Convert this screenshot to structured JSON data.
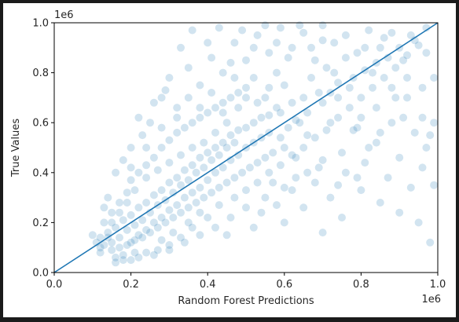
{
  "chart_data": {
    "type": "scatter",
    "title": "",
    "xlabel": "Random Forest Predictions",
    "ylabel": "True Values",
    "x_offset_text": "1e6",
    "y_offset_text": "1e6",
    "xlim": [
      0.0,
      1.0
    ],
    "ylim": [
      0.0,
      1.0
    ],
    "xticks": [
      "0.0",
      "0.2",
      "0.4",
      "0.6",
      "0.8",
      "1.0"
    ],
    "yticks": [
      "0.0",
      "0.2",
      "0.4",
      "0.6",
      "0.8",
      "1.0"
    ],
    "grid": false,
    "point_color": "#1f77b4",
    "point_alpha": 0.2,
    "line_color": "#1f77b4",
    "reference_line": {
      "x": [
        0.0,
        1.0
      ],
      "y": [
        0.0,
        1.0
      ]
    },
    "points": [
      [
        0.14,
        0.16
      ],
      [
        0.15,
        0.12
      ],
      [
        0.16,
        0.18
      ],
      [
        0.17,
        0.14
      ],
      [
        0.18,
        0.21
      ],
      [
        0.19,
        0.17
      ],
      [
        0.2,
        0.23
      ],
      [
        0.21,
        0.19
      ],
      [
        0.22,
        0.26
      ],
      [
        0.23,
        0.21
      ],
      [
        0.24,
        0.28
      ],
      [
        0.25,
        0.24
      ],
      [
        0.26,
        0.31
      ],
      [
        0.27,
        0.27
      ],
      [
        0.28,
        0.33
      ],
      [
        0.29,
        0.29
      ],
      [
        0.3,
        0.36
      ],
      [
        0.31,
        0.32
      ],
      [
        0.32,
        0.38
      ],
      [
        0.33,
        0.35
      ],
      [
        0.34,
        0.41
      ],
      [
        0.35,
        0.37
      ],
      [
        0.36,
        0.43
      ],
      [
        0.37,
        0.4
      ],
      [
        0.38,
        0.46
      ],
      [
        0.39,
        0.42
      ],
      [
        0.4,
        0.48
      ],
      [
        0.41,
        0.45
      ],
      [
        0.42,
        0.5
      ],
      [
        0.43,
        0.47
      ],
      [
        0.44,
        0.52
      ],
      [
        0.45,
        0.5
      ],
      [
        0.46,
        0.55
      ],
      [
        0.47,
        0.52
      ],
      [
        0.48,
        0.57
      ],
      [
        0.5,
        0.58
      ],
      [
        0.52,
        0.6
      ],
      [
        0.54,
        0.62
      ],
      [
        0.56,
        0.63
      ],
      [
        0.58,
        0.66
      ],
      [
        0.12,
        0.1
      ],
      [
        0.13,
        0.2
      ],
      [
        0.15,
        0.24
      ],
      [
        0.17,
        0.28
      ],
      [
        0.19,
        0.32
      ],
      [
        0.2,
        0.12
      ],
      [
        0.22,
        0.15
      ],
      [
        0.24,
        0.17
      ],
      [
        0.26,
        0.2
      ],
      [
        0.28,
        0.22
      ],
      [
        0.3,
        0.25
      ],
      [
        0.32,
        0.27
      ],
      [
        0.34,
        0.3
      ],
      [
        0.36,
        0.32
      ],
      [
        0.38,
        0.34
      ],
      [
        0.4,
        0.37
      ],
      [
        0.42,
        0.4
      ],
      [
        0.44,
        0.42
      ],
      [
        0.46,
        0.45
      ],
      [
        0.48,
        0.47
      ],
      [
        0.5,
        0.5
      ],
      [
        0.52,
        0.52
      ],
      [
        0.54,
        0.54
      ],
      [
        0.56,
        0.56
      ],
      [
        0.2,
        0.37
      ],
      [
        0.22,
        0.4
      ],
      [
        0.24,
        0.43
      ],
      [
        0.26,
        0.46
      ],
      [
        0.28,
        0.5
      ],
      [
        0.3,
        0.53
      ],
      [
        0.32,
        0.56
      ],
      [
        0.34,
        0.58
      ],
      [
        0.36,
        0.6
      ],
      [
        0.38,
        0.62
      ],
      [
        0.4,
        0.64
      ],
      [
        0.42,
        0.66
      ],
      [
        0.44,
        0.68
      ],
      [
        0.46,
        0.7
      ],
      [
        0.48,
        0.72
      ],
      [
        0.5,
        0.74
      ],
      [
        0.25,
        0.6
      ],
      [
        0.28,
        0.7
      ],
      [
        0.3,
        0.78
      ],
      [
        0.32,
        0.66
      ],
      [
        0.35,
        0.82
      ],
      [
        0.38,
        0.75
      ],
      [
        0.41,
        0.86
      ],
      [
        0.44,
        0.8
      ],
      [
        0.47,
        0.92
      ],
      [
        0.5,
        0.85
      ],
      [
        0.53,
        0.95
      ],
      [
        0.56,
        0.88
      ],
      [
        0.59,
        0.98
      ],
      [
        0.62,
        0.9
      ],
      [
        0.65,
        0.96
      ],
      [
        0.68,
        0.85
      ],
      [
        0.7,
        0.93
      ],
      [
        0.73,
        0.8
      ],
      [
        0.76,
        0.95
      ],
      [
        0.79,
        0.88
      ],
      [
        0.82,
        0.97
      ],
      [
        0.85,
        0.9
      ],
      [
        0.88,
        0.96
      ],
      [
        0.91,
        0.85
      ],
      [
        0.94,
        0.93
      ],
      [
        0.97,
        0.88
      ],
      [
        0.6,
        0.5
      ],
      [
        0.63,
        0.46
      ],
      [
        0.66,
        0.55
      ],
      [
        0.69,
        0.42
      ],
      [
        0.72,
        0.6
      ],
      [
        0.75,
        0.48
      ],
      [
        0.78,
        0.57
      ],
      [
        0.81,
        0.44
      ],
      [
        0.84,
        0.52
      ],
      [
        0.87,
        0.38
      ],
      [
        0.9,
        0.46
      ],
      [
        0.93,
        0.34
      ],
      [
        0.96,
        0.42
      ],
      [
        0.99,
        0.35
      ],
      [
        0.55,
        0.3
      ],
      [
        0.58,
        0.27
      ],
      [
        0.62,
        0.33
      ],
      [
        0.65,
        0.26
      ],
      [
        0.68,
        0.36
      ],
      [
        0.72,
        0.3
      ],
      [
        0.76,
        0.4
      ],
      [
        0.8,
        0.33
      ],
      [
        0.85,
        0.28
      ],
      [
        0.9,
        0.24
      ],
      [
        0.95,
        0.2
      ],
      [
        0.98,
        0.12
      ],
      [
        0.75,
        0.22
      ],
      [
        0.7,
        0.16
      ],
      [
        0.6,
        0.2
      ],
      [
        0.52,
        0.18
      ],
      [
        0.45,
        0.15
      ],
      [
        0.4,
        0.22
      ],
      [
        0.36,
        0.18
      ],
      [
        0.33,
        0.14
      ],
      [
        0.3,
        0.11
      ],
      [
        0.27,
        0.09
      ],
      [
        0.24,
        0.08
      ],
      [
        0.21,
        0.08
      ],
      [
        0.18,
        0.07
      ],
      [
        0.16,
        0.06
      ],
      [
        0.28,
        0.13
      ],
      [
        0.31,
        0.16
      ],
      [
        0.35,
        0.2
      ],
      [
        0.38,
        0.24
      ],
      [
        0.43,
        0.27
      ],
      [
        0.47,
        0.3
      ],
      [
        0.5,
        0.33
      ],
      [
        0.53,
        0.36
      ],
      [
        0.56,
        0.4
      ],
      [
        0.59,
        0.43
      ],
      [
        0.62,
        0.47
      ],
      [
        0.65,
        0.5
      ],
      [
        0.68,
        0.54
      ],
      [
        0.71,
        0.57
      ],
      [
        0.74,
        0.62
      ],
      [
        0.77,
        0.66
      ],
      [
        0.8,
        0.7
      ],
      [
        0.83,
        0.74
      ],
      [
        0.86,
        0.78
      ],
      [
        0.89,
        0.82
      ],
      [
        0.92,
        0.87
      ],
      [
        0.95,
        0.91
      ],
      [
        0.2,
        0.5
      ],
      [
        0.23,
        0.55
      ],
      [
        0.18,
        0.45
      ],
      [
        0.16,
        0.4
      ],
      [
        0.14,
        0.3
      ],
      [
        0.13,
        0.26
      ],
      [
        0.22,
        0.62
      ],
      [
        0.26,
        0.68
      ],
      [
        0.29,
        0.73
      ],
      [
        0.33,
        0.9
      ],
      [
        0.36,
        0.97
      ],
      [
        0.4,
        0.92
      ],
      [
        0.43,
        0.98
      ],
      [
        0.46,
        0.84
      ],
      [
        0.49,
        0.97
      ],
      [
        0.52,
        0.9
      ],
      [
        0.55,
        0.99
      ],
      [
        0.58,
        0.92
      ],
      [
        0.61,
        0.86
      ],
      [
        0.64,
        0.99
      ],
      [
        0.67,
        0.9
      ],
      [
        0.7,
        0.99
      ],
      [
        0.73,
        0.92
      ],
      [
        0.76,
        0.86
      ],
      [
        0.8,
        0.62
      ],
      [
        0.84,
        0.66
      ],
      [
        0.88,
        0.6
      ],
      [
        0.92,
        0.7
      ],
      [
        0.96,
        0.62
      ],
      [
        0.98,
        0.55
      ],
      [
        0.65,
        0.7
      ],
      [
        0.6,
        0.75
      ],
      [
        0.58,
        0.8
      ],
      [
        0.55,
        0.7
      ],
      [
        0.52,
        0.78
      ],
      [
        0.48,
        0.66
      ],
      [
        0.45,
        0.6
      ],
      [
        0.42,
        0.56
      ],
      [
        0.39,
        0.52
      ],
      [
        0.36,
        0.5
      ],
      [
        0.33,
        0.47
      ],
      [
        0.3,
        0.44
      ],
      [
        0.27,
        0.41
      ],
      [
        0.24,
        0.38
      ],
      [
        0.21,
        0.33
      ],
      [
        0.19,
        0.28
      ],
      [
        0.17,
        0.24
      ],
      [
        0.15,
        0.2
      ],
      [
        0.14,
        0.14
      ],
      [
        0.13,
        0.11
      ],
      [
        0.12,
        0.14
      ],
      [
        0.11,
        0.12
      ],
      [
        0.1,
        0.15
      ],
      [
        0.12,
        0.08
      ],
      [
        0.15,
        0.09
      ],
      [
        0.17,
        0.1
      ],
      [
        0.19,
        0.11
      ],
      [
        0.21,
        0.13
      ],
      [
        0.23,
        0.14
      ],
      [
        0.25,
        0.16
      ],
      [
        0.27,
        0.18
      ],
      [
        0.29,
        0.2
      ],
      [
        0.31,
        0.22
      ],
      [
        0.33,
        0.24
      ],
      [
        0.35,
        0.26
      ],
      [
        0.37,
        0.28
      ],
      [
        0.39,
        0.3
      ],
      [
        0.41,
        0.32
      ],
      [
        0.43,
        0.34
      ],
      [
        0.45,
        0.36
      ],
      [
        0.47,
        0.38
      ],
      [
        0.49,
        0.4
      ],
      [
        0.51,
        0.42
      ],
      [
        0.53,
        0.44
      ],
      [
        0.55,
        0.46
      ],
      [
        0.57,
        0.48
      ],
      [
        0.59,
        0.54
      ],
      [
        0.61,
        0.58
      ],
      [
        0.63,
        0.61
      ],
      [
        0.66,
        0.64
      ],
      [
        0.7,
        0.68
      ],
      [
        0.72,
        0.72
      ],
      [
        0.74,
        0.76
      ],
      [
        0.78,
        0.78
      ],
      [
        0.81,
        0.81
      ],
      [
        0.84,
        0.84
      ],
      [
        0.87,
        0.86
      ],
      [
        0.9,
        0.9
      ],
      [
        0.93,
        0.95
      ],
      [
        0.97,
        0.98
      ],
      [
        0.99,
        0.78
      ],
      [
        0.96,
        0.74
      ],
      [
        0.92,
        0.78
      ],
      [
        0.88,
        0.74
      ],
      [
        0.85,
        0.56
      ],
      [
        0.82,
        0.5
      ],
      [
        0.79,
        0.38
      ],
      [
        0.74,
        0.35
      ],
      [
        0.7,
        0.45
      ],
      [
        0.66,
        0.4
      ],
      [
        0.63,
        0.38
      ],
      [
        0.6,
        0.34
      ],
      [
        0.57,
        0.36
      ],
      [
        0.54,
        0.24
      ],
      [
        0.5,
        0.26
      ],
      [
        0.46,
        0.22
      ],
      [
        0.42,
        0.18
      ],
      [
        0.38,
        0.15
      ],
      [
        0.34,
        0.12
      ],
      [
        0.3,
        0.09
      ],
      [
        0.26,
        0.07
      ],
      [
        0.22,
        0.06
      ],
      [
        0.2,
        0.05
      ],
      [
        0.18,
        0.05
      ],
      [
        0.16,
        0.04
      ],
      [
        0.2,
        0.42
      ],
      [
        0.24,
        0.5
      ],
      [
        0.28,
        0.58
      ],
      [
        0.32,
        0.62
      ],
      [
        0.35,
        0.7
      ],
      [
        0.38,
        0.66
      ],
      [
        0.41,
        0.72
      ],
      [
        0.44,
        0.64
      ],
      [
        0.47,
        0.78
      ],
      [
        0.5,
        0.7
      ],
      [
        0.53,
        0.68
      ],
      [
        0.56,
        0.74
      ],
      [
        0.59,
        0.64
      ],
      [
        0.62,
        0.68
      ],
      [
        0.64,
        0.6
      ],
      [
        0.67,
        0.78
      ],
      [
        0.69,
        0.72
      ],
      [
        0.71,
        0.82
      ],
      [
        0.74,
        0.7
      ],
      [
        0.77,
        0.74
      ],
      [
        0.79,
        0.58
      ],
      [
        0.81,
        0.9
      ],
      [
        0.83,
        0.8
      ],
      [
        0.86,
        0.94
      ],
      [
        0.89,
        0.7
      ],
      [
        0.91,
        0.62
      ],
      [
        0.94,
        0.56
      ],
      [
        0.97,
        0.5
      ],
      [
        0.99,
        0.6
      ]
    ]
  }
}
